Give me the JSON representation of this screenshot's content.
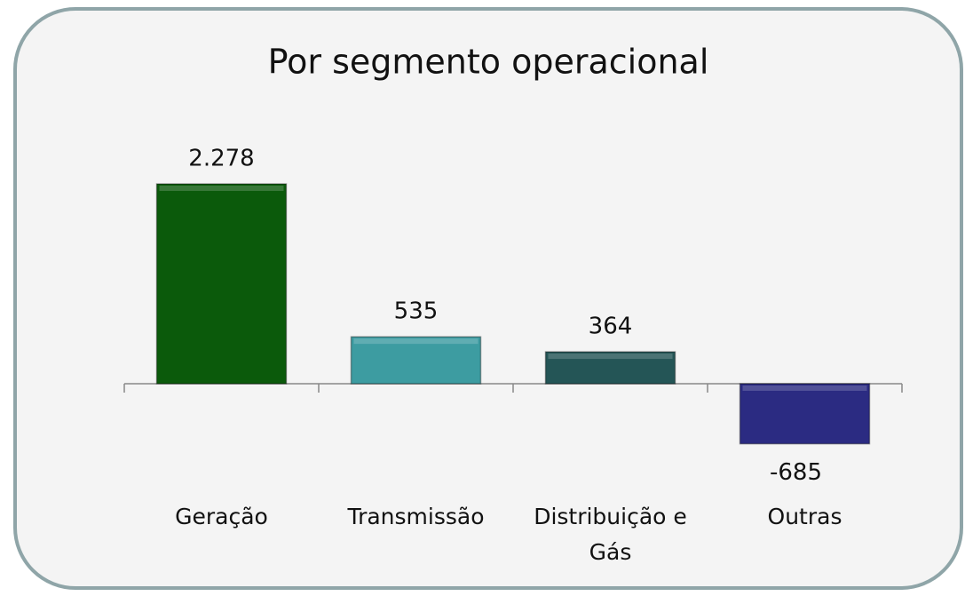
{
  "chart_data": {
    "type": "bar",
    "title": "Por segmento operacional",
    "categories": [
      "Geração",
      "Transmissão",
      "Distribuição e Gás",
      "Outras"
    ],
    "values": [
      2278,
      535,
      364,
      -685
    ],
    "value_labels": [
      "2.278",
      "535",
      "364",
      "-685"
    ],
    "colors": [
      "#0b5a0b",
      "#3d9ca1",
      "#245556",
      "#2b2b82"
    ]
  }
}
